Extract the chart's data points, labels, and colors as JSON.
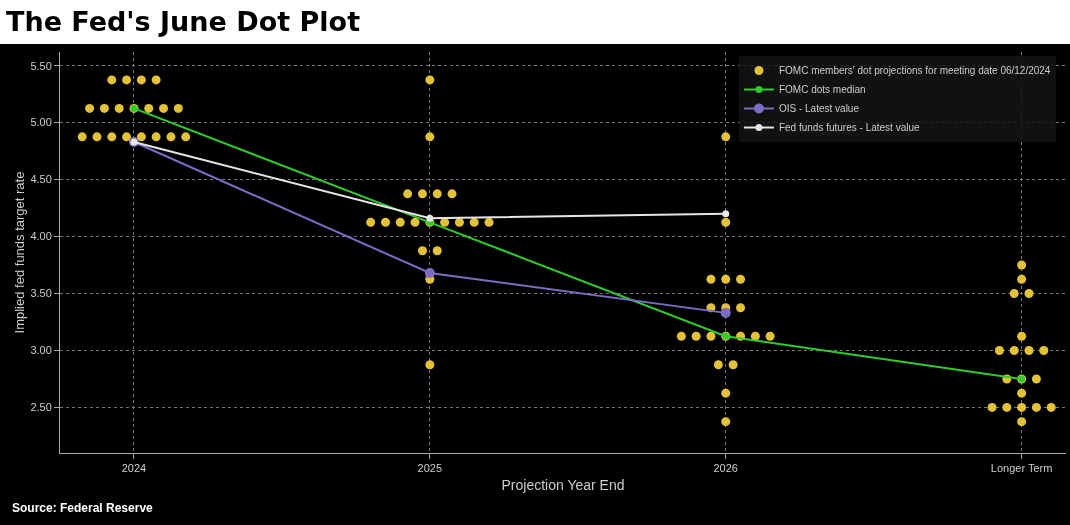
{
  "chart_data": {
    "type": "scatter",
    "title": "The Fed's June Dot Plot",
    "xlabel": "Projection Year End",
    "ylabel": "Implied fed funds target rate",
    "annotations": [
      "Source: Federal Reserve"
    ],
    "xlim": [
      2023.75,
      2027.15
    ],
    "xticks": [
      2024,
      2025,
      2026,
      {
        "value": 2027,
        "label": "Longer Term"
      }
    ],
    "ylim": [
      2.1,
      5.62
    ],
    "yticks": [
      {
        "value": 2.5,
        "label": "2.50"
      },
      {
        "value": 3,
        "label": "3.00"
      },
      {
        "value": 3.5,
        "label": "3.50"
      },
      {
        "value": 4,
        "label": "4.00"
      },
      {
        "value": 4.5,
        "label": "4.50"
      },
      {
        "value": 5,
        "label": "5.00"
      },
      {
        "value": 5.5,
        "label": "5.50"
      }
    ],
    "grid": true,
    "legend": "top right",
    "marker": "circle",
    "series": [
      {
        "name": "FOMC members' dot projections for meeting date 06/12/2024",
        "color": "#e3c23a",
        "x": [
          2023.925,
          2023.975,
          2024.025,
          2024.075,
          2023.85,
          2023.9,
          2023.95,
          2024,
          2024.05,
          2024.1,
          2024.15,
          2023.825,
          2023.875,
          2023.925,
          2023.975,
          2024.025,
          2024.075,
          2024.125,
          2024.175,
          2025,
          2025,
          2024.925,
          2024.975,
          2025.025,
          2025.075,
          2024.8,
          2024.85,
          2024.9,
          2024.95,
          2025,
          2025.05,
          2025.1,
          2025.15,
          2025.2,
          2024.975,
          2025.025,
          2025,
          2025,
          2026,
          2026,
          2025.95,
          2026,
          2026.05,
          2025.95,
          2026,
          2026.05,
          2025.85,
          2025.9,
          2025.95,
          2026,
          2026.05,
          2026.1,
          2026.15,
          2025.975,
          2026.025,
          2026,
          2026,
          2027,
          2027,
          2026.975,
          2027.025,
          2027,
          2026.925,
          2026.975,
          2027.025,
          2027.075,
          2026.95,
          2027,
          2027.05,
          2027,
          2026.9,
          2026.95,
          2027,
          2027.05,
          2027.1,
          2027
        ],
        "values": [
          5.375,
          5.375,
          5.375,
          5.375,
          5.125,
          5.125,
          5.125,
          5.125,
          5.125,
          5.125,
          5.125,
          4.875,
          4.875,
          4.875,
          4.875,
          4.875,
          4.875,
          4.875,
          4.875,
          5.375,
          4.875,
          4.375,
          4.375,
          4.375,
          4.375,
          4.125,
          4.125,
          4.125,
          4.125,
          4.125,
          4.125,
          4.125,
          4.125,
          4.125,
          3.875,
          3.875,
          3.625,
          2.875,
          4.875,
          4.125,
          3.625,
          3.625,
          3.625,
          3.375,
          3.375,
          3.375,
          3.125,
          3.125,
          3.125,
          3.125,
          3.125,
          3.125,
          3.125,
          2.875,
          2.875,
          2.625,
          2.375,
          3.75,
          3.625,
          3.5,
          3.5,
          3.125,
          3,
          3,
          3,
          3,
          2.75,
          2.75,
          2.75,
          2.625,
          2.5,
          2.5,
          2.5,
          2.5,
          2.5,
          2.375
        ]
      },
      {
        "name": "FOMC dots median",
        "type": "line",
        "color": "#2ecc2e",
        "x": [
          2024,
          2025,
          2026,
          2027
        ],
        "values": [
          5.125,
          4.125,
          3.125,
          2.75
        ]
      },
      {
        "name": "OIS - Latest value",
        "type": "line",
        "color": "#7b6cc4",
        "x": [
          2024,
          2025,
          2026
        ],
        "values": [
          4.83,
          3.68,
          3.33
        ]
      },
      {
        "name": "Fed funds futures - Latest value",
        "type": "line",
        "color": "#e6e6e6",
        "x": [
          2024,
          2025,
          2026
        ],
        "values": [
          4.83,
          4.16,
          4.2
        ]
      }
    ]
  }
}
